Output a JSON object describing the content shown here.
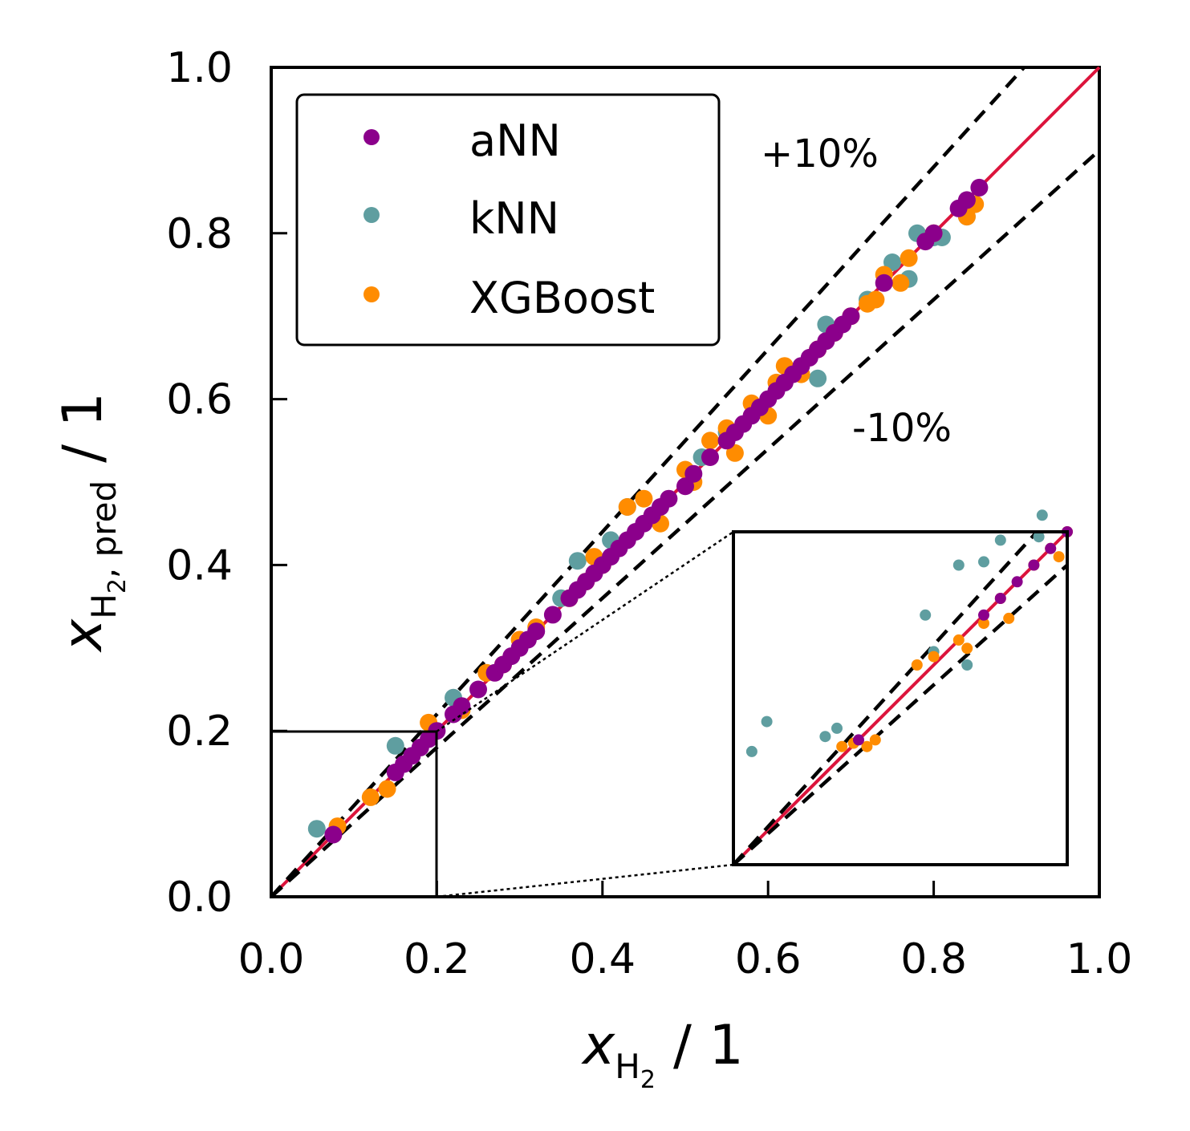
{
  "chart_data": {
    "type": "scatter",
    "title": "",
    "xlabel": "x_H2 / 1",
    "ylabel": "x_H2,pred / 1",
    "xlabel_parts": {
      "main": "x",
      "sub": "H",
      "subsub": "2",
      "tail": "/ 1"
    },
    "ylabel_parts": {
      "main": "x",
      "sub": "H",
      "subsub": "2",
      "sub_extra": ", pred",
      "tail": "/ 1"
    },
    "xlim": [
      0,
      1
    ],
    "ylim": [
      0,
      1
    ],
    "xticks": [
      "0.0",
      "0.2",
      "0.4",
      "0.6",
      "0.8",
      "1.0"
    ],
    "yticks": [
      "0.0",
      "0.2",
      "0.4",
      "0.6",
      "0.8",
      "1.0"
    ],
    "grid": false,
    "legend_position": "top-left",
    "reference_lines": {
      "identity": {
        "slope": 1.0,
        "color": "#dc143c"
      },
      "upper": {
        "slope": 1.1,
        "label": "+10%"
      },
      "lower": {
        "slope": 0.9,
        "label": "-10%"
      }
    },
    "series": [
      {
        "name": "aNN",
        "color": "#8b008b",
        "x": [
          0.075,
          0.15,
          0.16,
          0.17,
          0.18,
          0.19,
          0.2,
          0.22,
          0.23,
          0.25,
          0.27,
          0.28,
          0.29,
          0.3,
          0.31,
          0.32,
          0.34,
          0.36,
          0.37,
          0.38,
          0.39,
          0.4,
          0.41,
          0.42,
          0.43,
          0.44,
          0.45,
          0.46,
          0.47,
          0.48,
          0.5,
          0.51,
          0.53,
          0.55,
          0.56,
          0.57,
          0.58,
          0.59,
          0.6,
          0.61,
          0.62,
          0.63,
          0.64,
          0.65,
          0.66,
          0.67,
          0.68,
          0.69,
          0.7,
          0.74,
          0.79,
          0.8,
          0.83,
          0.84,
          0.855
        ],
        "y": [
          0.075,
          0.15,
          0.16,
          0.17,
          0.18,
          0.19,
          0.2,
          0.22,
          0.23,
          0.25,
          0.27,
          0.28,
          0.29,
          0.3,
          0.31,
          0.32,
          0.34,
          0.36,
          0.37,
          0.38,
          0.39,
          0.4,
          0.41,
          0.42,
          0.43,
          0.44,
          0.45,
          0.46,
          0.47,
          0.48,
          0.495,
          0.51,
          0.53,
          0.55,
          0.56,
          0.57,
          0.58,
          0.59,
          0.6,
          0.61,
          0.62,
          0.63,
          0.64,
          0.65,
          0.66,
          0.67,
          0.68,
          0.69,
          0.7,
          0.74,
          0.79,
          0.8,
          0.83,
          0.84,
          0.855
        ]
      },
      {
        "name": "kNN",
        "color": "#5f9ea0",
        "x": [
          0.055,
          0.15,
          0.22,
          0.35,
          0.37,
          0.41,
          0.43,
          0.52,
          0.55,
          0.62,
          0.66,
          0.67,
          0.72,
          0.75,
          0.77,
          0.78,
          0.8,
          0.81,
          0.84
        ],
        "y": [
          0.082,
          0.182,
          0.24,
          0.36,
          0.405,
          0.43,
          0.47,
          0.53,
          0.56,
          0.62,
          0.625,
          0.69,
          0.72,
          0.765,
          0.745,
          0.8,
          0.795,
          0.795,
          0.82
        ]
      },
      {
        "name": "XGBoost",
        "color": "#ff8c00",
        "x": [
          0.08,
          0.12,
          0.14,
          0.19,
          0.23,
          0.26,
          0.28,
          0.3,
          0.32,
          0.36,
          0.38,
          0.39,
          0.4,
          0.43,
          0.45,
          0.47,
          0.5,
          0.51,
          0.53,
          0.55,
          0.56,
          0.58,
          0.6,
          0.61,
          0.62,
          0.64,
          0.66,
          0.68,
          0.7,
          0.72,
          0.73,
          0.74,
          0.76,
          0.77,
          0.8,
          0.84,
          0.85
        ],
        "y": [
          0.085,
          0.12,
          0.13,
          0.21,
          0.225,
          0.27,
          0.28,
          0.31,
          0.325,
          0.36,
          0.38,
          0.41,
          0.4,
          0.47,
          0.48,
          0.45,
          0.515,
          0.5,
          0.55,
          0.565,
          0.535,
          0.595,
          0.58,
          0.62,
          0.64,
          0.63,
          0.66,
          0.68,
          0.7,
          0.715,
          0.72,
          0.75,
          0.74,
          0.77,
          0.8,
          0.82,
          0.835
        ]
      }
    ],
    "inset": {
      "source_region": {
        "xlim": [
          0,
          0.2
        ],
        "ylim": [
          0,
          0.2
        ]
      },
      "series": [
        {
          "name": "aNN",
          "x": [
            0.075,
            0.15,
            0.16,
            0.17,
            0.18,
            0.19,
            0.2
          ],
          "y": [
            0.075,
            0.15,
            0.16,
            0.17,
            0.18,
            0.19,
            0.2
          ]
        },
        {
          "name": "kNN",
          "x": [
            0.011,
            0.02,
            0.055,
            0.062,
            0.115,
            0.12,
            0.135,
            0.14,
            0.15,
            0.16,
            0.183,
            0.185
          ],
          "y": [
            0.068,
            0.086,
            0.077,
            0.082,
            0.15,
            0.128,
            0.18,
            0.12,
            0.182,
            0.195,
            0.197,
            0.21
          ]
        },
        {
          "name": "XGBoost",
          "x": [
            0.065,
            0.072,
            0.08,
            0.085,
            0.11,
            0.12,
            0.135,
            0.14,
            0.15,
            0.16,
            0.165,
            0.18,
            0.19,
            0.195,
            0.2
          ],
          "y": [
            0.071,
            0.073,
            0.071,
            0.075,
            0.12,
            0.125,
            0.135,
            0.13,
            0.145,
            0.16,
            0.148,
            0.18,
            0.19,
            0.185,
            0.2
          ]
        }
      ]
    }
  }
}
